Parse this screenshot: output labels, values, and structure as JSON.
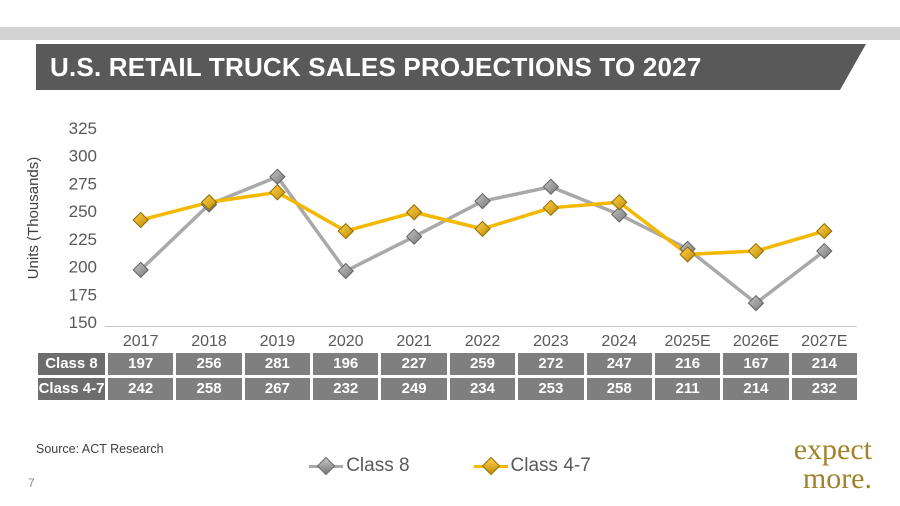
{
  "header": {
    "title": "U.S. RETAIL TRUCK SALES PROJECTIONS TO 2027"
  },
  "chart_data": {
    "type": "line",
    "title": "U.S. RETAIL TRUCK SALES PROJECTIONS TO 2027",
    "xlabel": "",
    "ylabel": "Units (Thousands)",
    "ylim": [
      150,
      325
    ],
    "yticks": [
      150,
      175,
      200,
      225,
      250,
      275,
      300,
      325
    ],
    "grid": false,
    "legend_position": "bottom",
    "categories": [
      "2017",
      "2018",
      "2019",
      "2020",
      "2021",
      "2022",
      "2023",
      "2024",
      "2025E",
      "2026E",
      "2027E"
    ],
    "series": [
      {
        "name": "Class 8",
        "values": [
          197,
          256,
          281,
          196,
          227,
          259,
          272,
          247,
          216,
          167,
          214
        ],
        "color": "#A9A9A9",
        "marker_fill": "#C6C6C6",
        "marker_fill2": "#787878",
        "marker_edge": "#636363"
      },
      {
        "name": "Class 4-7",
        "values": [
          242,
          258,
          267,
          232,
          249,
          234,
          253,
          258,
          211,
          214,
          232
        ],
        "color": "#F3B800",
        "marker_fill": "#FFD24D",
        "marker_fill2": "#C08C00",
        "marker_edge": "#8F6A00"
      }
    ]
  },
  "footer": {
    "source": "Source:  ACT Research",
    "page_number": "7",
    "logo": {
      "line1": "expect",
      "line2": "more."
    }
  },
  "colors": {
    "banner": "#595959",
    "top_strip": "#D3D3D3",
    "table_cell": "#7F7F7F",
    "table_label": "#6D6D6D",
    "brand_gold": "#A08429",
    "axis_text": "#595959"
  }
}
